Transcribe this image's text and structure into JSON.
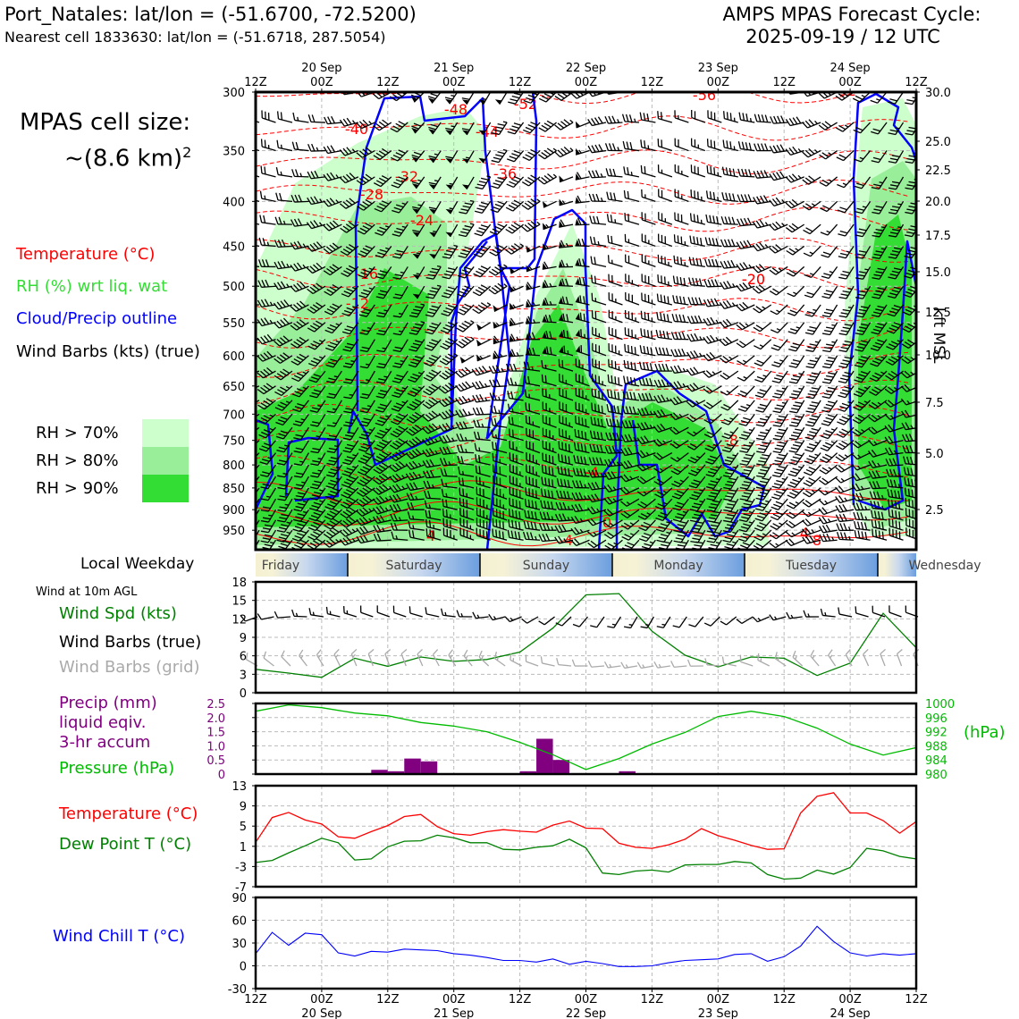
{
  "header": {
    "title_left": "Port_Natales: lat/lon = (-51.6700, -72.5200)",
    "subtitle_left": "Nearest cell 1833630: lat/lon = (-51.6718, 287.5054)",
    "title_right_1": "AMPS MPAS Forecast Cycle:",
    "title_right_2": "2025-09-19 / 12 UTC"
  },
  "side": {
    "cell_size_1": "MPAS cell size:",
    "cell_size_2": "~(8.6 km)",
    "cell_size_sup": "2",
    "legend_temp": "Temperature (°C)",
    "legend_rh": "RH (%) wrt liq. wat",
    "legend_cloud": "Cloud/Precip outline",
    "legend_wind": "Wind Barbs (kts) (true)",
    "rh70": "RH > 70%",
    "rh80": "RH > 80%",
    "rh90": "RH > 90%",
    "local_weekday": "Local Weekday",
    "wind10m": "Wind at 10m AGL",
    "wind_spd": "Wind Spd (kts)",
    "wind_true": "Wind Barbs (true)",
    "wind_grid": "Wind Barbs (grid)",
    "precip_1": "Precip (mm)",
    "precip_2": "liquid eqiv.",
    "precip_3": "3-hr accum",
    "pressure": "Pressure (hPa)",
    "temp": "Temperature (°C)",
    "dewpt": "Dew Point T (°C)",
    "windchill": "Wind Chill T (°C)",
    "hpa_unit": "(hPa)",
    "kft": "kft MSL"
  },
  "colors": {
    "temp": "#ff0000",
    "rh": "#33dd33",
    "cloud": "#0000ff",
    "dew": "#008000",
    "precip": "#800080",
    "pressure": "#00bb00",
    "chill": "#0000ff",
    "grid_barb": "#aaaaaa",
    "rh70": "#ccffcc",
    "rh80": "#99ee99",
    "rh90": "#33dd33"
  },
  "time_axis": {
    "ticks": [
      "12Z",
      "00Z",
      "12Z",
      "00Z",
      "12Z",
      "00Z",
      "12Z",
      "00Z",
      "12Z",
      "00Z",
      "12Z"
    ],
    "dates": [
      "20 Sep",
      "21 Sep",
      "22 Sep",
      "23 Sep",
      "24 Sep"
    ]
  },
  "weekdays": [
    "Friday",
    "Saturday",
    "Sunday",
    "Monday",
    "Tuesday",
    "Wednesday"
  ],
  "chart_data": [
    {
      "type": "heatmap",
      "name": "cross-section",
      "y_ticks_hpa": [
        300,
        350,
        400,
        450,
        500,
        550,
        600,
        650,
        700,
        750,
        800,
        850,
        900,
        950
      ],
      "y_ticks_kft": [
        "30.0",
        "25.0",
        "22.5",
        "20.0",
        "17.5",
        "15.0",
        "12.5",
        "10.0",
        "7.5",
        "5.0",
        "2.5"
      ],
      "temp_labels": [
        "-48",
        "-52",
        "-56",
        "-52",
        "-40",
        "-44",
        "-36",
        "-32",
        "-28",
        "-24",
        "-20",
        "-20",
        "-16",
        "-12",
        "-8",
        "-4",
        "4",
        "4",
        "0",
        "4",
        "8"
      ]
    },
    {
      "type": "line",
      "name": "wind-speed-10m",
      "y_ticks": [
        0,
        3,
        6,
        9,
        12,
        15,
        18
      ],
      "ylim": [
        0,
        18
      ],
      "x_hours": [
        0,
        6,
        12,
        18,
        24,
        30,
        36,
        42,
        48,
        54,
        60,
        66,
        72,
        78,
        84,
        90,
        96,
        102,
        108,
        114,
        120
      ],
      "values": [
        3.8,
        3.2,
        2.5,
        5.6,
        4.3,
        5.8,
        5.1,
        5.4,
        6.6,
        10.5,
        15.9,
        16.1,
        10.0,
        6.1,
        4.2,
        5.8,
        5.6,
        2.8,
        4.8,
        12.9,
        7.3
      ]
    },
    {
      "type": "bar",
      "name": "precip-3hr",
      "y_ticks": [
        "0",
        "0.5",
        "1.0",
        "1.5",
        "2.0",
        "2.5"
      ],
      "ylim": [
        0,
        2.5
      ],
      "bars": [
        {
          "h": 22.5,
          "v": 0.15
        },
        {
          "h": 25.5,
          "v": 0.1
        },
        {
          "h": 28.5,
          "v": 0.55
        },
        {
          "h": 31.5,
          "v": 0.45
        },
        {
          "h": 49.5,
          "v": 0.1
        },
        {
          "h": 52.5,
          "v": 1.25
        },
        {
          "h": 55.5,
          "v": 0.5
        },
        {
          "h": 67.5,
          "v": 0.1
        }
      ],
      "pressure_ticks": [
        "980",
        "984",
        "988",
        "992",
        "996",
        "1000"
      ],
      "pressure_ylim": [
        980,
        1000
      ],
      "pressure_x_hours": [
        0,
        6,
        12,
        18,
        24,
        30,
        36,
        42,
        48,
        54,
        60,
        66,
        72,
        78,
        84,
        90,
        96,
        102,
        108,
        114,
        120
      ],
      "pressure": [
        997.8,
        999.6,
        998.8,
        997.3,
        996.5,
        994.6,
        993.6,
        992.0,
        989.0,
        985.5,
        981.3,
        984.4,
        988.5,
        991.8,
        996.3,
        997.8,
        996.3,
        993.0,
        988.5,
        985.4,
        987.5
      ]
    },
    {
      "type": "line",
      "name": "temperature-dewpoint",
      "y_ticks": [
        -7,
        -3,
        1,
        5,
        9,
        13
      ],
      "ylim": [
        -7,
        13
      ],
      "x_hours": [
        0,
        3,
        6,
        9,
        12,
        15,
        18,
        21,
        24,
        27,
        30,
        33,
        36,
        39,
        42,
        45,
        48,
        51,
        54,
        57,
        60,
        63,
        66,
        69,
        72,
        75,
        78,
        81,
        84,
        87,
        90,
        93,
        96,
        99,
        102,
        105,
        108,
        111,
        114,
        117,
        120
      ],
      "temperature": [
        1.8,
        6.7,
        7.7,
        6.2,
        5.4,
        2.9,
        2.6,
        3.9,
        5.1,
        6.9,
        7.3,
        4.9,
        3.5,
        3.2,
        3.9,
        4.3,
        4.0,
        3.8,
        5.2,
        6.0,
        4.6,
        4.5,
        1.6,
        0.8,
        0.6,
        1.3,
        2.4,
        4.5,
        3.1,
        2.2,
        1.2,
        0.4,
        0.5,
        7.6,
        10.9,
        11.6,
        7.6,
        7.6,
        6.1,
        3.6,
        5.9
      ],
      "dewpoint": [
        -2.2,
        -1.8,
        -0.3,
        1.1,
        2.6,
        1.7,
        -1.7,
        -1.5,
        0.9,
        2.0,
        2.1,
        3.2,
        2.7,
        1.7,
        1.7,
        0.4,
        0.3,
        0.8,
        1.1,
        2.4,
        0.7,
        -4.3,
        -4.6,
        -3.9,
        -3.7,
        -4.1,
        -2.7,
        -2.6,
        -2.6,
        -2.0,
        -2.3,
        -4.6,
        -5.5,
        -5.3,
        -3.7,
        -4.5,
        -3.2,
        0.6,
        0.1,
        -1.0,
        -1.5
      ]
    },
    {
      "type": "line",
      "name": "wind-chill",
      "y_ticks": [
        -30,
        0,
        30,
        60,
        90
      ],
      "ylim": [
        -30,
        90
      ],
      "x_hours": [
        0,
        3,
        6,
        9,
        12,
        15,
        18,
        21,
        24,
        27,
        30,
        33,
        36,
        39,
        42,
        45,
        48,
        51,
        54,
        57,
        60,
        63,
        66,
        69,
        72,
        75,
        78,
        81,
        84,
        87,
        90,
        93,
        96,
        99,
        102,
        105,
        108,
        111,
        114,
        117,
        120
      ],
      "values": [
        16,
        44,
        27,
        43,
        41,
        17,
        13,
        19,
        18,
        22,
        21,
        20,
        16,
        14,
        11,
        7,
        7,
        5,
        9,
        2,
        6,
        3,
        -1,
        -1,
        0,
        4,
        7,
        8,
        9,
        15,
        16,
        6,
        12,
        26,
        52,
        32,
        17,
        13,
        16,
        14,
        16
      ]
    }
  ]
}
